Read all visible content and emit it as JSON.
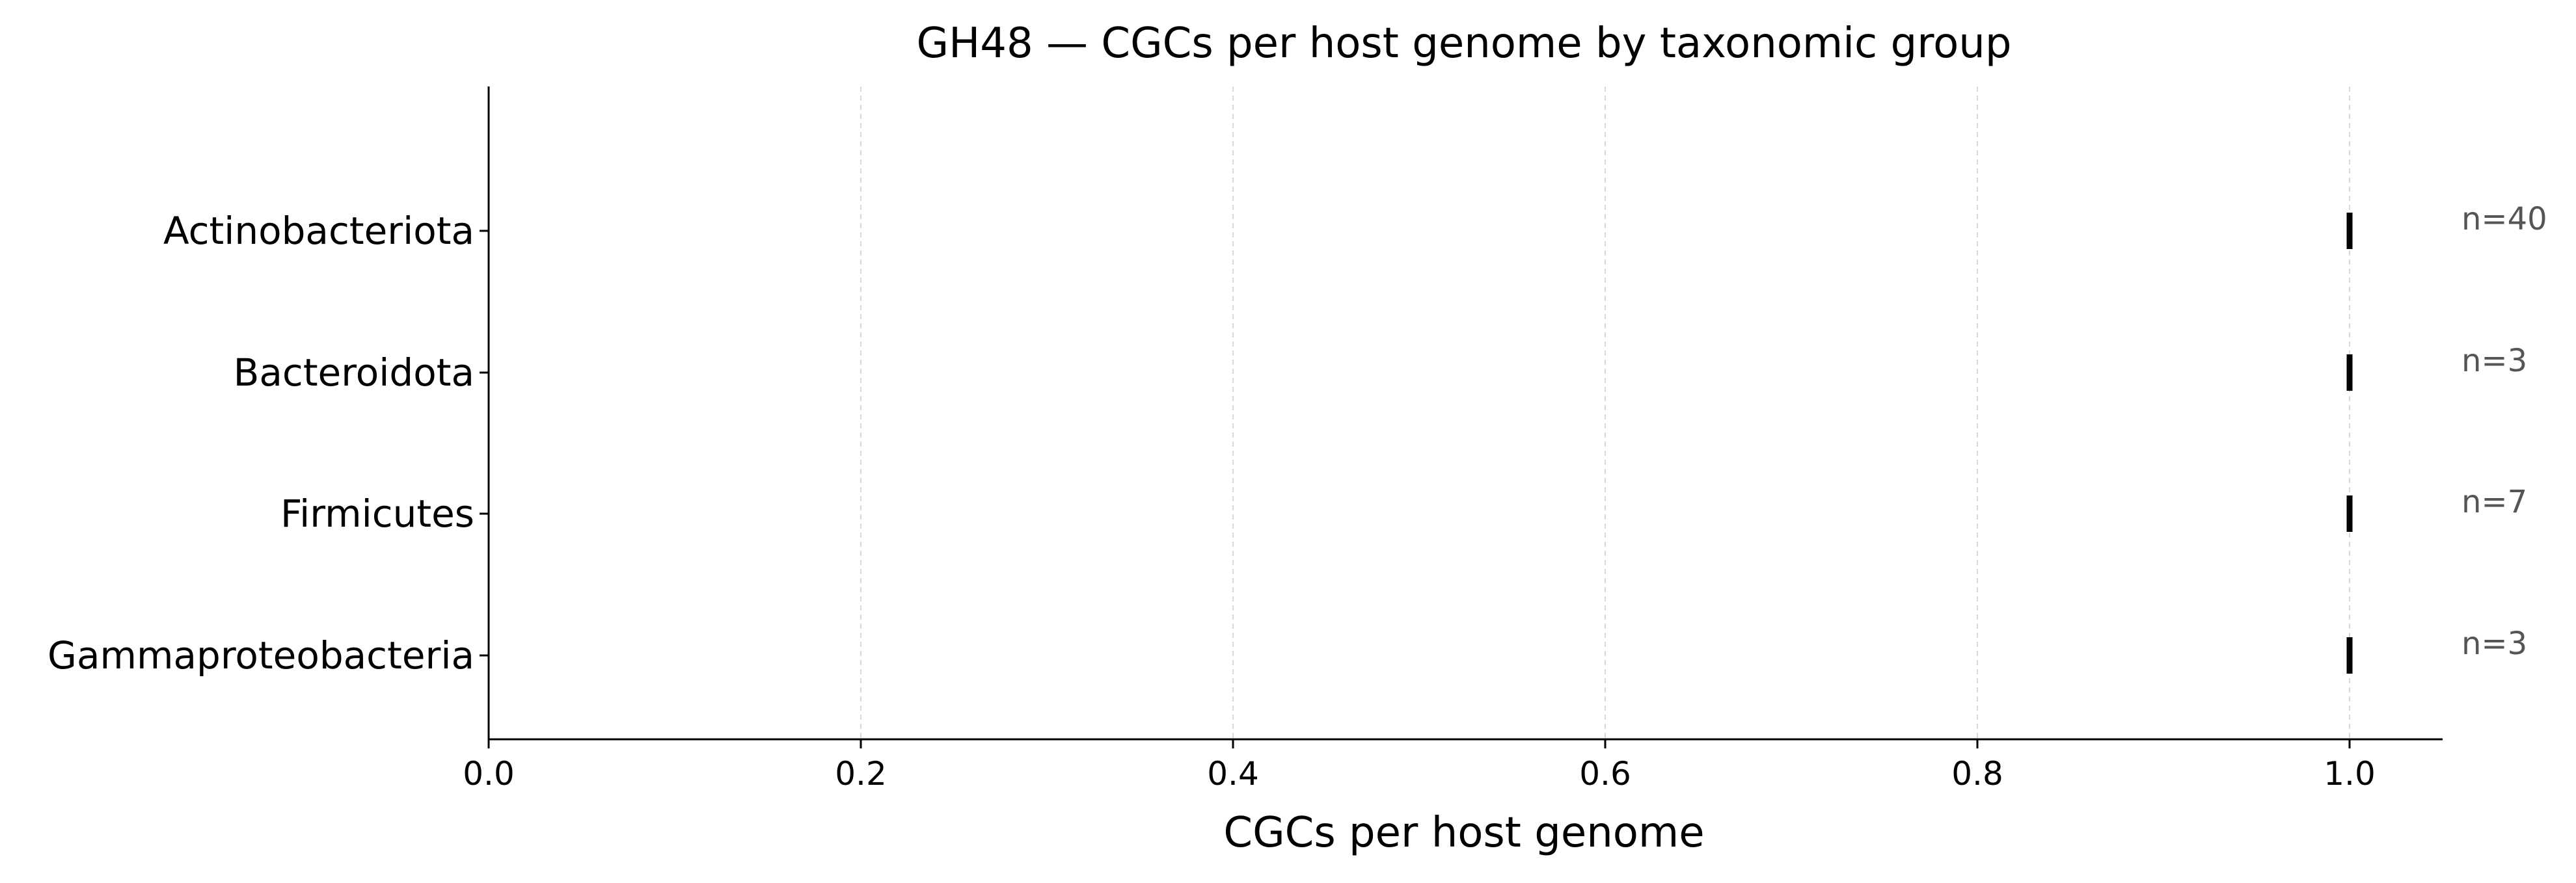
{
  "chart_data": {
    "type": "scatter",
    "title": "GH48 — CGCs per host genome by taxonomic group",
    "xlabel": "CGCs per host genome",
    "ylabel": "",
    "xlim": [
      0.0,
      1.05
    ],
    "xticks": [
      0.0,
      0.2,
      0.4,
      0.6,
      0.8,
      1.0
    ],
    "xtick_labels": [
      "0.0",
      "0.2",
      "0.4",
      "0.6",
      "0.8",
      "1.0"
    ],
    "grid": "x, dashed",
    "categories": [
      "Actinobacteriota",
      "Bacteroidota",
      "Firmicutes",
      "Gammaproteobacteria"
    ],
    "values": [
      1.0,
      1.0,
      1.0,
      1.0
    ],
    "n_labels": [
      "n=40",
      "n=3",
      "n=7",
      "n=3"
    ],
    "mark_color": "#000000",
    "annotation_color": "#555555"
  }
}
